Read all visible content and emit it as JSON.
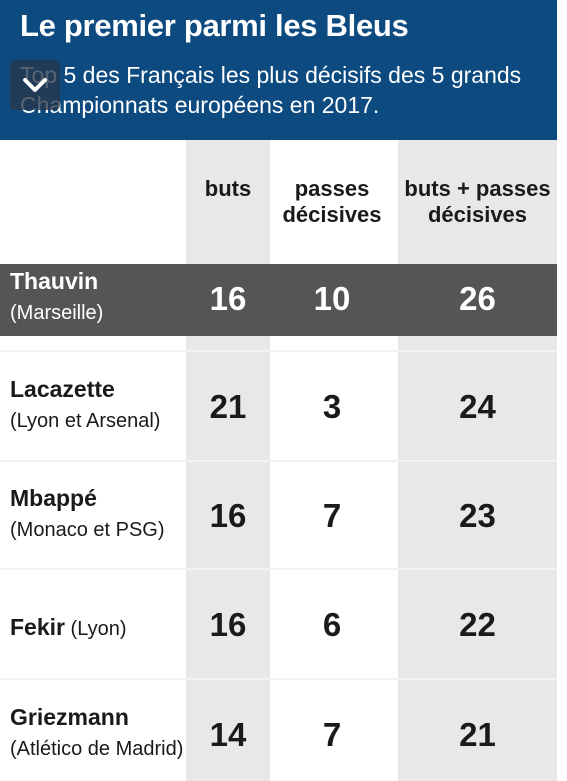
{
  "header": {
    "title": "Le premier parmi les Bleus",
    "subtitle": "Top 5 des Français les plus décisifs des 5 grands Championnats européens en 2017."
  },
  "overlay": {
    "icon": "chevron-down-icon"
  },
  "chart_data": {
    "type": "table",
    "title": "Le premier parmi les Bleus",
    "subtitle": "Top 5 des Français les plus décisifs des 5 grands Championnats européens en 2017.",
    "columns": [
      "buts",
      "passes décisives",
      "buts + passes décisives"
    ],
    "rows": [
      {
        "player": "Thauvin",
        "club": "(Marseille)",
        "buts": 16,
        "passes": 10,
        "total": 26,
        "highlight": true
      },
      {
        "player": "Lacazette",
        "club": "(Lyon et Arsenal)",
        "buts": 21,
        "passes": 3,
        "total": 24
      },
      {
        "player": "Mbappé",
        "club": "(Monaco et PSG)",
        "buts": 16,
        "passes": 7,
        "total": 23
      },
      {
        "player": "Fekir",
        "club": "(Lyon)",
        "buts": 16,
        "passes": 6,
        "total": 22
      },
      {
        "player": "Griezmann",
        "club": "(Atlético de Madrid)",
        "buts": 14,
        "passes": 7,
        "total": 21
      }
    ]
  },
  "colors": {
    "header_bg": "#0d4a80",
    "highlight_row": "#555555",
    "column_shade": "#e8e8e8"
  }
}
